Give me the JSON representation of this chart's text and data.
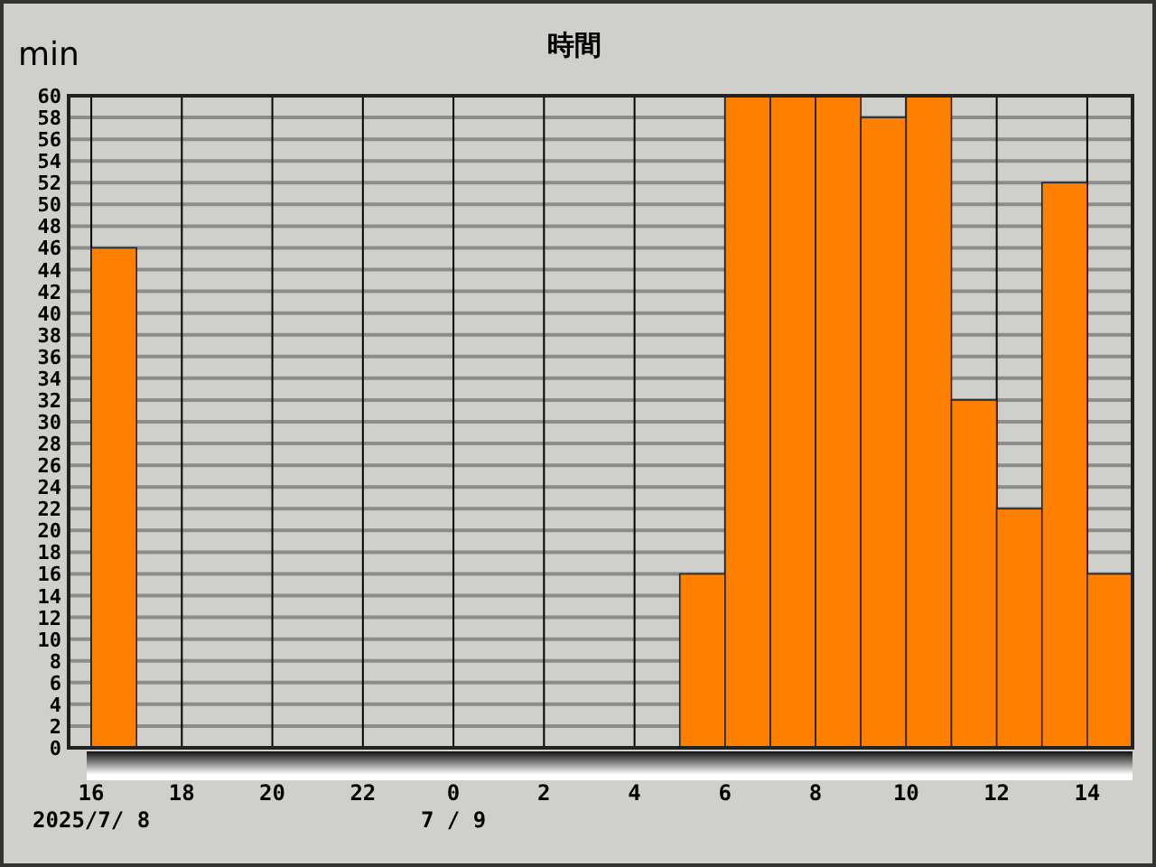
{
  "chart_data": {
    "type": "bar",
    "title": "時間",
    "ylabel": "min",
    "x": [
      "2025-07-08T16:30",
      "2025-07-08T17:30",
      "2025-07-08T18:30",
      "2025-07-08T19:30",
      "2025-07-08T20:30",
      "2025-07-08T21:30",
      "2025-07-08T22:30",
      "2025-07-08T23:30",
      "2025-07-09T00:30",
      "2025-07-09T01:30",
      "2025-07-09T02:30",
      "2025-07-09T03:30",
      "2025-07-09T04:30",
      "2025-07-09T05:30",
      "2025-07-09T06:30",
      "2025-07-09T07:30",
      "2025-07-09T08:30",
      "2025-07-09T09:30",
      "2025-07-09T10:30",
      "2025-07-09T11:30",
      "2025-07-09T12:30",
      "2025-07-09T13:30",
      "2025-07-09T14:30"
    ],
    "values": [
      46,
      0,
      0,
      0,
      0,
      0,
      0,
      0,
      0,
      0,
      0,
      0,
      0,
      16,
      60,
      60,
      60,
      58,
      60,
      32,
      22,
      52,
      16
    ],
    "color": "#ff8000",
    "xlim": [
      "2025-07-08T15:30",
      "2025-07-09T15:00"
    ],
    "xticks": [
      {
        "value": "2025-07-08T16:00",
        "label": "16"
      },
      {
        "value": "2025-07-08T18:00",
        "label": "18"
      },
      {
        "value": "2025-07-08T20:00",
        "label": "20"
      },
      {
        "value": "2025-07-08T22:00",
        "label": "22"
      },
      {
        "value": "2025-07-09T00:00",
        "label": "0"
      },
      {
        "value": "2025-07-09T02:00",
        "label": "2"
      },
      {
        "value": "2025-07-09T04:00",
        "label": "4"
      },
      {
        "value": "2025-07-09T06:00",
        "label": "6"
      },
      {
        "value": "2025-07-09T08:00",
        "label": "8"
      },
      {
        "value": "2025-07-09T10:00",
        "label": "10"
      },
      {
        "value": "2025-07-09T12:00",
        "label": "12"
      },
      {
        "value": "2025-07-09T14:00",
        "label": "14"
      }
    ],
    "ylim": [
      0,
      60
    ],
    "yticks": [
      0,
      2,
      4,
      6,
      8,
      10,
      12,
      14,
      16,
      18,
      20,
      22,
      24,
      26,
      28,
      30,
      32,
      34,
      36,
      38,
      40,
      42,
      44,
      46,
      48,
      50,
      52,
      54,
      56,
      58,
      60
    ],
    "annotations": [
      "2025/7/ 8",
      "7 / 9"
    ],
    "grid": true
  }
}
